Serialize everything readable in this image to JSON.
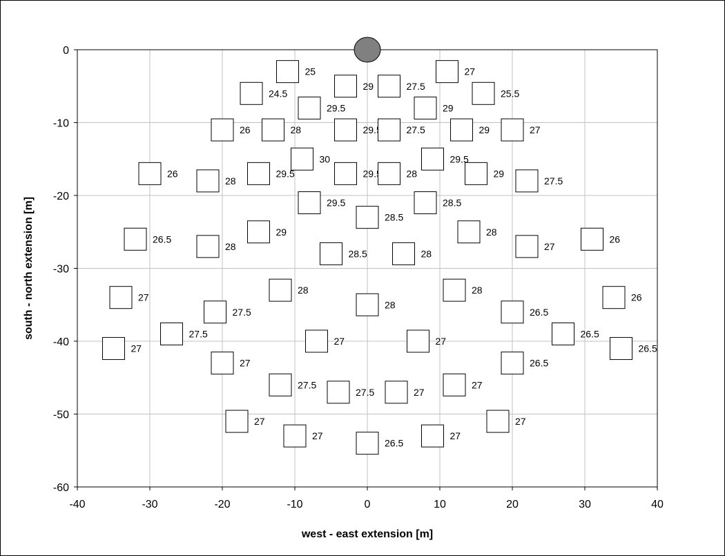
{
  "chart_data": {
    "type": "scatter",
    "xlabel": "west - east extension [m]",
    "ylabel": "south - north extension [m]",
    "xlim": [
      -40,
      40
    ],
    "ylim": [
      -60,
      0
    ],
    "xticks": [
      -40,
      -30,
      -20,
      -10,
      0,
      10,
      20,
      30,
      40
    ],
    "yticks": [
      0,
      -10,
      -20,
      -30,
      -40,
      -50,
      -60
    ],
    "grid": true,
    "legend": "none",
    "colors": {
      "grid": "#c0c0c0",
      "marker_fill": "#ffffff",
      "marker_stroke": "#000000",
      "source_fill": "#808080"
    },
    "source": {
      "x": 0,
      "y": 0,
      "shape": "circle"
    },
    "series": [
      {
        "marker": "square",
        "points": [
          {
            "x": -11,
            "y": -3,
            "label": "25"
          },
          {
            "x": -16,
            "y": -6,
            "label": "24.5"
          },
          {
            "x": -3,
            "y": -5,
            "label": "29"
          },
          {
            "x": 3,
            "y": -5,
            "label": "27.5"
          },
          {
            "x": 11,
            "y": -3,
            "label": "27"
          },
          {
            "x": 16,
            "y": -6,
            "label": "25.5"
          },
          {
            "x": -8,
            "y": -8,
            "label": "29.5"
          },
          {
            "x": 8,
            "y": -8,
            "label": "29"
          },
          {
            "x": -20,
            "y": -11,
            "label": "26"
          },
          {
            "x": -13,
            "y": -11,
            "label": "28"
          },
          {
            "x": -3,
            "y": -11,
            "label": "29.5"
          },
          {
            "x": 3,
            "y": -11,
            "label": "27.5"
          },
          {
            "x": 13,
            "y": -11,
            "label": "29"
          },
          {
            "x": 20,
            "y": -11,
            "label": "27"
          },
          {
            "x": -9,
            "y": -15,
            "label": "30"
          },
          {
            "x": 9,
            "y": -15,
            "label": "29.5"
          },
          {
            "x": -3,
            "y": -17,
            "label": "29.5"
          },
          {
            "x": 3,
            "y": -17,
            "label": "28"
          },
          {
            "x": -30,
            "y": -17,
            "label": "26"
          },
          {
            "x": -22,
            "y": -18,
            "label": "28"
          },
          {
            "x": -15,
            "y": -17,
            "label": "29.5"
          },
          {
            "x": 15,
            "y": -17,
            "label": "29"
          },
          {
            "x": 22,
            "y": -18,
            "label": "27.5"
          },
          {
            "x": -8,
            "y": -21,
            "label": "29.5"
          },
          {
            "x": 8,
            "y": -21,
            "label": "28.5"
          },
          {
            "x": 0,
            "y": -23,
            "label": "28.5"
          },
          {
            "x": -15,
            "y": -25,
            "label": "29"
          },
          {
            "x": 14,
            "y": -25,
            "label": "28"
          },
          {
            "x": -32,
            "y": -26,
            "label": "26.5"
          },
          {
            "x": -22,
            "y": -27,
            "label": "28"
          },
          {
            "x": 22,
            "y": -27,
            "label": "27"
          },
          {
            "x": 31,
            "y": -26,
            "label": "26"
          },
          {
            "x": -5,
            "y": -28,
            "label": "28.5"
          },
          {
            "x": 5,
            "y": -28,
            "label": "28"
          },
          {
            "x": -34,
            "y": -34,
            "label": "27"
          },
          {
            "x": -12,
            "y": -33,
            "label": "28"
          },
          {
            "x": 12,
            "y": -33,
            "label": "28"
          },
          {
            "x": 34,
            "y": -34,
            "label": "26"
          },
          {
            "x": -21,
            "y": -36,
            "label": "27.5"
          },
          {
            "x": 0,
            "y": -35,
            "label": "28"
          },
          {
            "x": 20,
            "y": -36,
            "label": "26.5"
          },
          {
            "x": -27,
            "y": -39,
            "label": "27.5"
          },
          {
            "x": 27,
            "y": -39,
            "label": "26.5"
          },
          {
            "x": -35,
            "y": -41,
            "label": "27"
          },
          {
            "x": -7,
            "y": -40,
            "label": "27"
          },
          {
            "x": 7,
            "y": -40,
            "label": "27"
          },
          {
            "x": 35,
            "y": -41,
            "label": "26.5"
          },
          {
            "x": -20,
            "y": -43,
            "label": "27"
          },
          {
            "x": 20,
            "y": -43,
            "label": "26.5"
          },
          {
            "x": -12,
            "y": -46,
            "label": "27.5"
          },
          {
            "x": -4,
            "y": -47,
            "label": "27.5"
          },
          {
            "x": 4,
            "y": -47,
            "label": "27"
          },
          {
            "x": 12,
            "y": -46,
            "label": "27"
          },
          {
            "x": -18,
            "y": -51,
            "label": "27"
          },
          {
            "x": 18,
            "y": -51,
            "label": "27"
          },
          {
            "x": -10,
            "y": -53,
            "label": "27"
          },
          {
            "x": 0,
            "y": -54,
            "label": "26.5"
          },
          {
            "x": 9,
            "y": -53,
            "label": "27"
          }
        ]
      }
    ]
  }
}
